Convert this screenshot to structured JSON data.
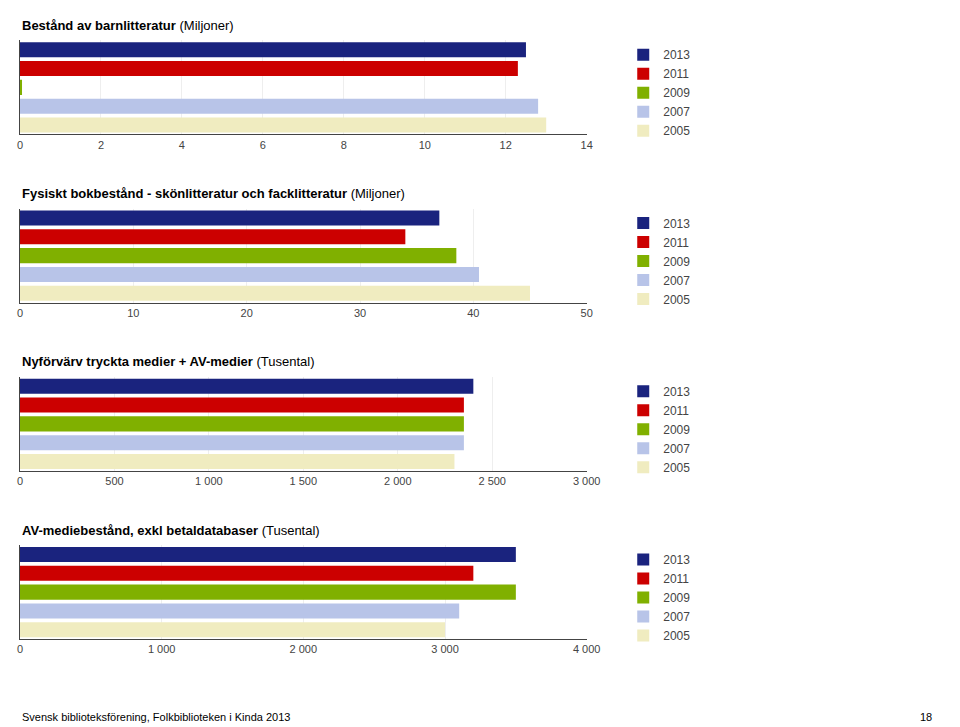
{
  "chart_data": [
    {
      "type": "bar",
      "orientation": "horizontal",
      "title": "Bestånd av barnlitteratur",
      "subtitle": "(Miljoner)",
      "categories": [
        "2013",
        "2011",
        "2009",
        "2007",
        "2005"
      ],
      "values": [
        12.5,
        12.3,
        0.05,
        12.8,
        13.0
      ],
      "colors": [
        "#1a237e",
        "#cc0000",
        "#80b000",
        "#b8c4e8",
        "#f0ecc0"
      ],
      "xlim": [
        0,
        14
      ],
      "xticks": [
        0,
        2,
        4,
        6,
        8,
        10,
        12,
        14
      ],
      "grid": true,
      "legend": "right",
      "tick_labels": "x"
    },
    {
      "type": "bar",
      "orientation": "horizontal",
      "title": "Fysiskt bokbestånd - skönlitteratur och facklitteratur",
      "subtitle": "(Miljoner)",
      "categories": [
        "2013",
        "2011",
        "2009",
        "2007",
        "2005"
      ],
      "values": [
        37.0,
        34.0,
        38.5,
        40.5,
        45.0
      ],
      "colors": [
        "#1a237e",
        "#cc0000",
        "#80b000",
        "#b8c4e8",
        "#f0ecc0"
      ],
      "xlim": [
        0,
        50
      ],
      "xticks": [
        0,
        10,
        20,
        30,
        40,
        50
      ],
      "grid": true,
      "legend": "right",
      "tick_labels": "x"
    },
    {
      "type": "bar",
      "orientation": "horizontal",
      "title": "Nyförvärv tryckta medier + AV-medier",
      "subtitle": "(Tusental)",
      "categories": [
        "2013",
        "2011",
        "2009",
        "2007",
        "2005"
      ],
      "values": [
        2400,
        2350,
        2350,
        2350,
        2300
      ],
      "colors": [
        "#1a237e",
        "#cc0000",
        "#80b000",
        "#b8c4e8",
        "#f0ecc0"
      ],
      "xlim": [
        0,
        3000
      ],
      "xticks": [
        0,
        500,
        {
          "value": 1000,
          "label": "1 000"
        },
        {
          "value": 1500,
          "label": "1 500"
        },
        {
          "value": 2000,
          "label": "2 000"
        },
        {
          "value": 2500,
          "label": "2 500"
        },
        {
          "value": 3000,
          "label": "3 000"
        }
      ],
      "grid": true,
      "legend": "right",
      "tick_labels": "x"
    },
    {
      "type": "bar",
      "orientation": "horizontal",
      "title": "AV-mediebestånd, exkl betaldatabaser",
      "subtitle": "(Tusental)",
      "categories": [
        "2013",
        "2011",
        "2009",
        "2007",
        "2005"
      ],
      "values": [
        3500,
        3200,
        3500,
        3100,
        3000
      ],
      "colors": [
        "#1a237e",
        "#cc0000",
        "#80b000",
        "#b8c4e8",
        "#f0ecc0"
      ],
      "xlim": [
        0,
        4000
      ],
      "xticks": [
        0,
        {
          "value": 1000,
          "label": "1 000"
        },
        {
          "value": 2000,
          "label": "2 000"
        },
        {
          "value": 3000,
          "label": "3 000"
        },
        {
          "value": 4000,
          "label": "4 000"
        }
      ],
      "grid": true,
      "legend": "right",
      "tick_labels": "x",
      "annotations": [
        "Svensk biblioteksförening, Folkbiblioteken i Kinda 2013",
        "18"
      ]
    }
  ]
}
